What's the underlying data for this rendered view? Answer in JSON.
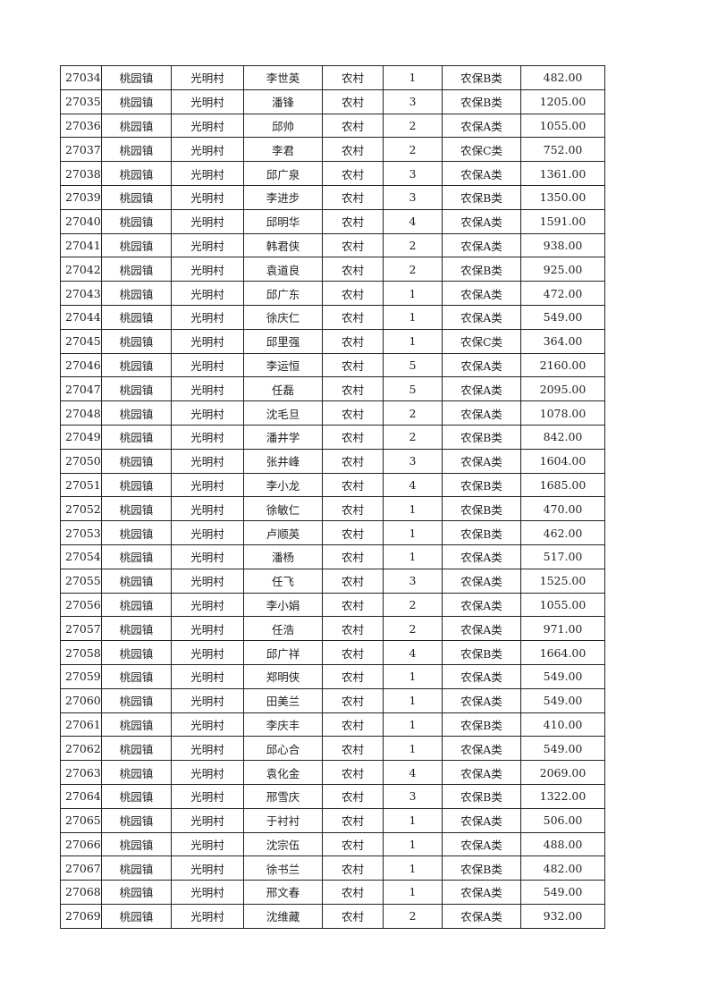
{
  "rows": [
    [
      "27034",
      "桃园镇",
      "光明村",
      "李世英",
      "农村",
      "1",
      "农保B类",
      "482.00"
    ],
    [
      "27035",
      "桃园镇",
      "光明村",
      "潘锋",
      "农村",
      "3",
      "农保B类",
      "1205.00"
    ],
    [
      "27036",
      "桃园镇",
      "光明村",
      "邱帅",
      "农村",
      "2",
      "农保A类",
      "1055.00"
    ],
    [
      "27037",
      "桃园镇",
      "光明村",
      "李君",
      "农村",
      "2",
      "农保C类",
      "752.00"
    ],
    [
      "27038",
      "桃园镇",
      "光明村",
      "邱广泉",
      "农村",
      "3",
      "农保A类",
      "1361.00"
    ],
    [
      "27039",
      "桃园镇",
      "光明村",
      "李进步",
      "农村",
      "3",
      "农保B类",
      "1350.00"
    ],
    [
      "27040",
      "桃园镇",
      "光明村",
      "邱明华",
      "农村",
      "4",
      "农保A类",
      "1591.00"
    ],
    [
      "27041",
      "桃园镇",
      "光明村",
      "韩君侠",
      "农村",
      "2",
      "农保A类",
      "938.00"
    ],
    [
      "27042",
      "桃园镇",
      "光明村",
      "袁道良",
      "农村",
      "2",
      "农保B类",
      "925.00"
    ],
    [
      "27043",
      "桃园镇",
      "光明村",
      "邱广东",
      "农村",
      "1",
      "农保A类",
      "472.00"
    ],
    [
      "27044",
      "桃园镇",
      "光明村",
      "徐庆仁",
      "农村",
      "1",
      "农保A类",
      "549.00"
    ],
    [
      "27045",
      "桃园镇",
      "光明村",
      "邱里强",
      "农村",
      "1",
      "农保C类",
      "364.00"
    ],
    [
      "27046",
      "桃园镇",
      "光明村",
      "李运恒",
      "农村",
      "5",
      "农保A类",
      "2160.00"
    ],
    [
      "27047",
      "桃园镇",
      "光明村",
      "任磊",
      "农村",
      "5",
      "农保A类",
      "2095.00"
    ],
    [
      "27048",
      "桃园镇",
      "光明村",
      "沈毛旦",
      "农村",
      "2",
      "农保A类",
      "1078.00"
    ],
    [
      "27049",
      "桃园镇",
      "光明村",
      "潘井学",
      "农村",
      "2",
      "农保B类",
      "842.00"
    ],
    [
      "27050",
      "桃园镇",
      "光明村",
      "张井峰",
      "农村",
      "3",
      "农保A类",
      "1604.00"
    ],
    [
      "27051",
      "桃园镇",
      "光明村",
      "李小龙",
      "农村",
      "4",
      "农保B类",
      "1685.00"
    ],
    [
      "27052",
      "桃园镇",
      "光明村",
      "徐敏仁",
      "农村",
      "1",
      "农保B类",
      "470.00"
    ],
    [
      "27053",
      "桃园镇",
      "光明村",
      "卢顺英",
      "农村",
      "1",
      "农保B类",
      "462.00"
    ],
    [
      "27054",
      "桃园镇",
      "光明村",
      "潘杨",
      "农村",
      "1",
      "农保A类",
      "517.00"
    ],
    [
      "27055",
      "桃园镇",
      "光明村",
      "任飞",
      "农村",
      "3",
      "农保A类",
      "1525.00"
    ],
    [
      "27056",
      "桃园镇",
      "光明村",
      "李小娟",
      "农村",
      "2",
      "农保A类",
      "1055.00"
    ],
    [
      "27057",
      "桃园镇",
      "光明村",
      "任浩",
      "农村",
      "2",
      "农保A类",
      "971.00"
    ],
    [
      "27058",
      "桃园镇",
      "光明村",
      "邱广祥",
      "农村",
      "4",
      "农保B类",
      "1664.00"
    ],
    [
      "27059",
      "桃园镇",
      "光明村",
      "郑明侠",
      "农村",
      "1",
      "农保A类",
      "549.00"
    ],
    [
      "27060",
      "桃园镇",
      "光明村",
      "田美兰",
      "农村",
      "1",
      "农保A类",
      "549.00"
    ],
    [
      "27061",
      "桃园镇",
      "光明村",
      "李庆丰",
      "农村",
      "1",
      "农保B类",
      "410.00"
    ],
    [
      "27062",
      "桃园镇",
      "光明村",
      "邱心合",
      "农村",
      "1",
      "农保A类",
      "549.00"
    ],
    [
      "27063",
      "桃园镇",
      "光明村",
      "袁化金",
      "农村",
      "4",
      "农保A类",
      "2069.00"
    ],
    [
      "27064",
      "桃园镇",
      "光明村",
      "邢雪庆",
      "农村",
      "3",
      "农保B类",
      "1322.00"
    ],
    [
      "27065",
      "桃园镇",
      "光明村",
      "于衬衬",
      "农村",
      "1",
      "农保A类",
      "506.00"
    ],
    [
      "27066",
      "桃园镇",
      "光明村",
      "沈宗伍",
      "农村",
      "1",
      "农保A类",
      "488.00"
    ],
    [
      "27067",
      "桃园镇",
      "光明村",
      "徐书兰",
      "农村",
      "1",
      "农保B类",
      "482.00"
    ],
    [
      "27068",
      "桃园镇",
      "光明村",
      "邢文春",
      "农村",
      "1",
      "农保A类",
      "549.00"
    ],
    [
      "27069",
      "桃园镇",
      "光明村",
      "沈维藏",
      "农村",
      "2",
      "农保A类",
      "932.00"
    ]
  ]
}
